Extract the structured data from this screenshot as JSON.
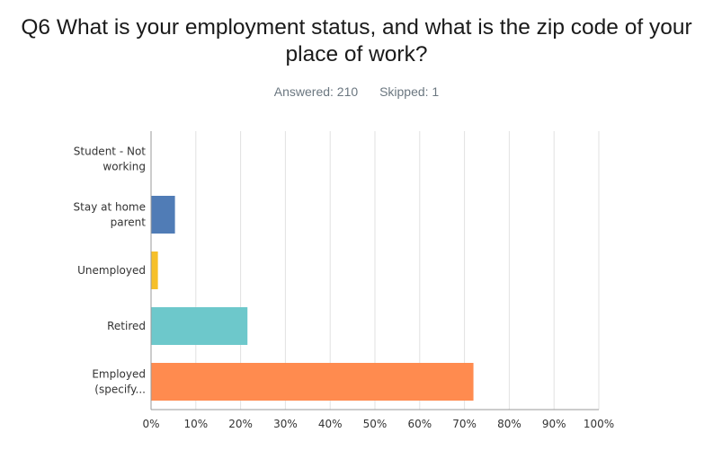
{
  "question": {
    "title_line1": "Q6 What is your employment status, and what is the zip code of your",
    "title_line2": "place of work?",
    "answered": "Answered: 210",
    "skipped": "Skipped: 1"
  },
  "colors": {
    "grid": "#e2e2e2",
    "axis": "#999999"
  },
  "chart_data": {
    "type": "bar",
    "orientation": "horizontal",
    "title": "Q6 What is your employment status, and what is the zip code of your place of work?",
    "categories": [
      [
        "Student - Not",
        "working"
      ],
      [
        "Stay at home",
        "parent"
      ],
      [
        "Unemployed"
      ],
      [
        "Retired"
      ],
      [
        "Employed",
        "(specify..."
      ]
    ],
    "values": [
      0,
      5.24,
      1.43,
      21.43,
      71.9
    ],
    "bar_colors": [
      "#507cb6",
      "#507cb6",
      "#f6c02a",
      "#6dc8cb",
      "#ff8b4f"
    ],
    "xlim": [
      0,
      100
    ],
    "xticks": [
      0,
      10,
      20,
      30,
      40,
      50,
      60,
      70,
      80,
      90,
      100
    ],
    "tick_suffix": "%",
    "grid": true
  }
}
